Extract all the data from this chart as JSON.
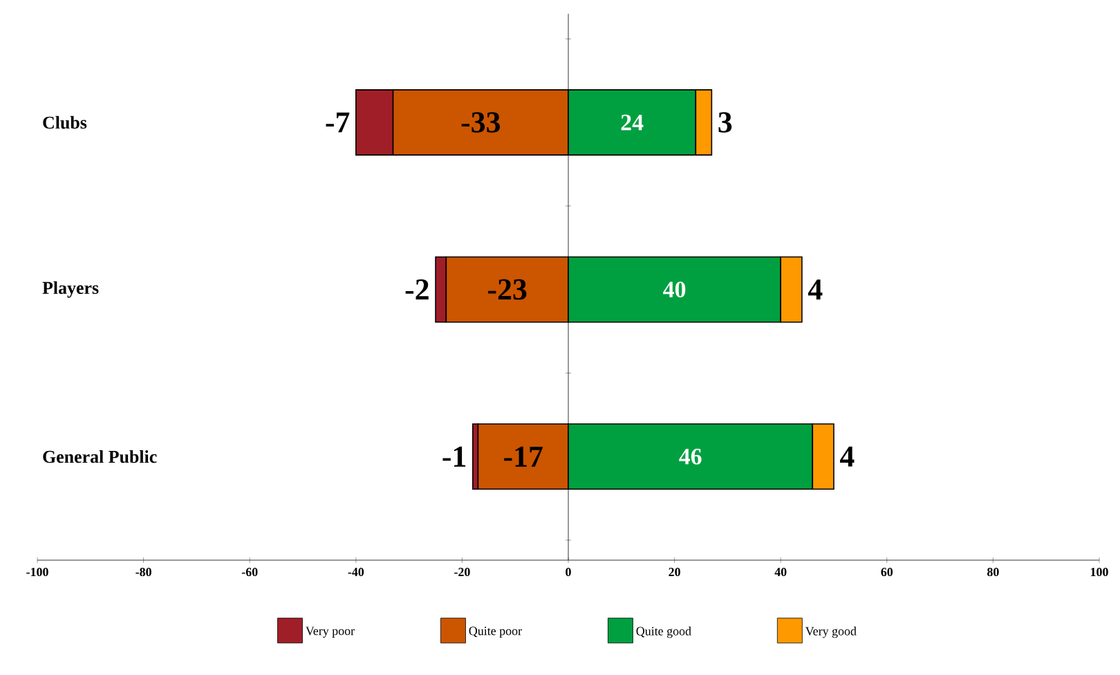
{
  "chart_data": {
    "type": "bar",
    "orientation": "horizontal",
    "stacked": true,
    "categories": [
      "Clubs",
      "Players",
      "General Public"
    ],
    "series": [
      {
        "name": "Very poor",
        "color": "#a01e28",
        "values": [
          -7,
          -2,
          -1
        ]
      },
      {
        "name": "Quite poor",
        "color": "#cc5500",
        "values": [
          -33,
          -23,
          -17
        ]
      },
      {
        "name": "Quite good",
        "color": "#00a040",
        "values": [
          24,
          40,
          46
        ]
      },
      {
        "name": "Very good",
        "color": "#ff9900",
        "values": [
          3,
          4,
          4
        ]
      }
    ],
    "xlim": [
      -100,
      100
    ],
    "xticks": [
      -100,
      -80,
      -60,
      -40,
      -20,
      0,
      20,
      40,
      60,
      80,
      100
    ],
    "data_labels": true,
    "legend": "bottom"
  }
}
